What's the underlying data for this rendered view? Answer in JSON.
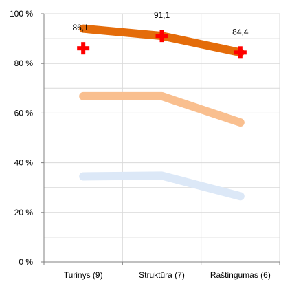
{
  "chart_data": {
    "type": "line",
    "categories": [
      "Turinys (9)",
      "Struktūra (7)",
      "Raštingumas (6)"
    ],
    "ylim": [
      0,
      100
    ],
    "yticks": [
      {
        "value": 0,
        "label": "0 %"
      },
      {
        "value": 20,
        "label": "20 %"
      },
      {
        "value": 40,
        "label": "40 %"
      },
      {
        "value": 60,
        "label": "60 %"
      },
      {
        "value": 80,
        "label": "80 %"
      },
      {
        "value": 100,
        "label": "100 %"
      }
    ],
    "grid": true,
    "series": [
      {
        "values": [
          34.5,
          34.8,
          26.5
        ],
        "color": "#dce8f7",
        "style": "line"
      },
      {
        "values": [
          66.8,
          66.8,
          56.2
        ],
        "color": "#f9bf8f",
        "style": "line"
      },
      {
        "values": [
          94.0,
          91.1,
          84.4
        ],
        "color": "#e46c0a",
        "style": "line"
      },
      {
        "values": [
          86.1,
          91.1,
          84.4
        ],
        "color": "#ff0000",
        "style": "cross-marker",
        "labels": [
          "86,1",
          "91,1",
          "84,4"
        ]
      }
    ]
  }
}
